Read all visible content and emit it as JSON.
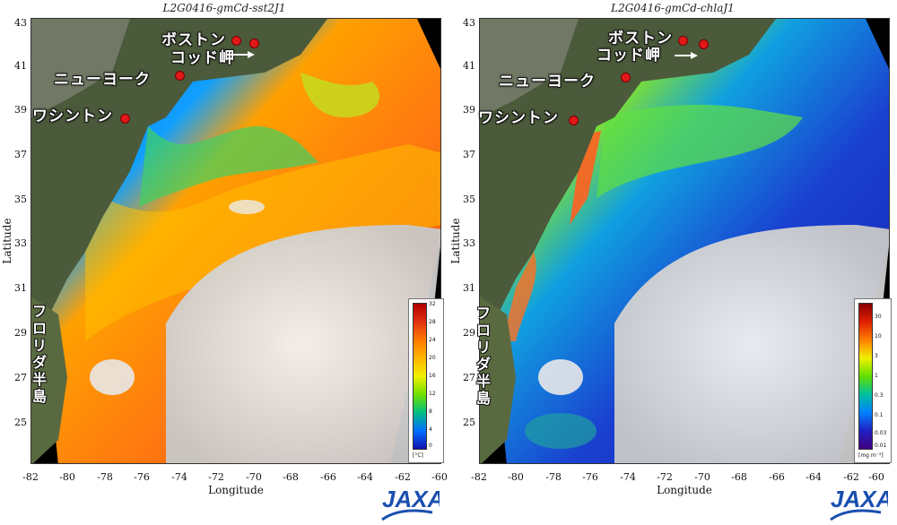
{
  "panels": [
    {
      "title": "L2G0416-gmCd-sst2J1",
      "colorbar": {
        "ticks": [
          "32",
          "28",
          "24",
          "20",
          "16",
          "12",
          "8",
          "4",
          "0"
        ],
        "unit": "[°C]",
        "colors": [
          "#b00000",
          "#e03010",
          "#ff7a00",
          "#ffb400",
          "#f0f000",
          "#70e000",
          "#00c080",
          "#0070ff",
          "#1010b0"
        ]
      }
    },
    {
      "title": "L2G0416-gmCd-chlaJ1",
      "colorbar": {
        "ticks": [
          "30",
          "10",
          "3",
          "1",
          "0.3",
          "0.1",
          "0.03",
          "0.01"
        ],
        "unit": "[mg m⁻³]",
        "colors": [
          "#8a0000",
          "#e02000",
          "#ff8000",
          "#f0f000",
          "#60e000",
          "#00c0a0",
          "#0080ff",
          "#2020c0",
          "#400080"
        ]
      }
    }
  ],
  "axes": {
    "xlabel": "Longitude",
    "ylabel": "Latitude",
    "xticks": [
      "-82",
      "-80",
      "-78",
      "-76",
      "-74",
      "-72",
      "-70",
      "-68",
      "-66",
      "-64",
      "-62",
      "-60"
    ],
    "yticks": [
      "43",
      "41",
      "39",
      "37",
      "35",
      "33",
      "31",
      "29",
      "27",
      "25"
    ]
  },
  "places": {
    "boston": "ボストン",
    "cape_cod": "コッド岬",
    "new_york": "ニューヨーク",
    "washington": "ワシントン",
    "florida": [
      "フ",
      "ロ",
      "リ",
      "ダ",
      "半",
      "島"
    ]
  },
  "logo": "JAXA",
  "colors": {
    "land": "#4a5a3a",
    "cloud": "#e8e8e8",
    "sst_warm": "#ff6a10",
    "sst_cool": "#1a5aff",
    "chl_high": "#f0e000",
    "chl_low": "#1a30d0"
  }
}
